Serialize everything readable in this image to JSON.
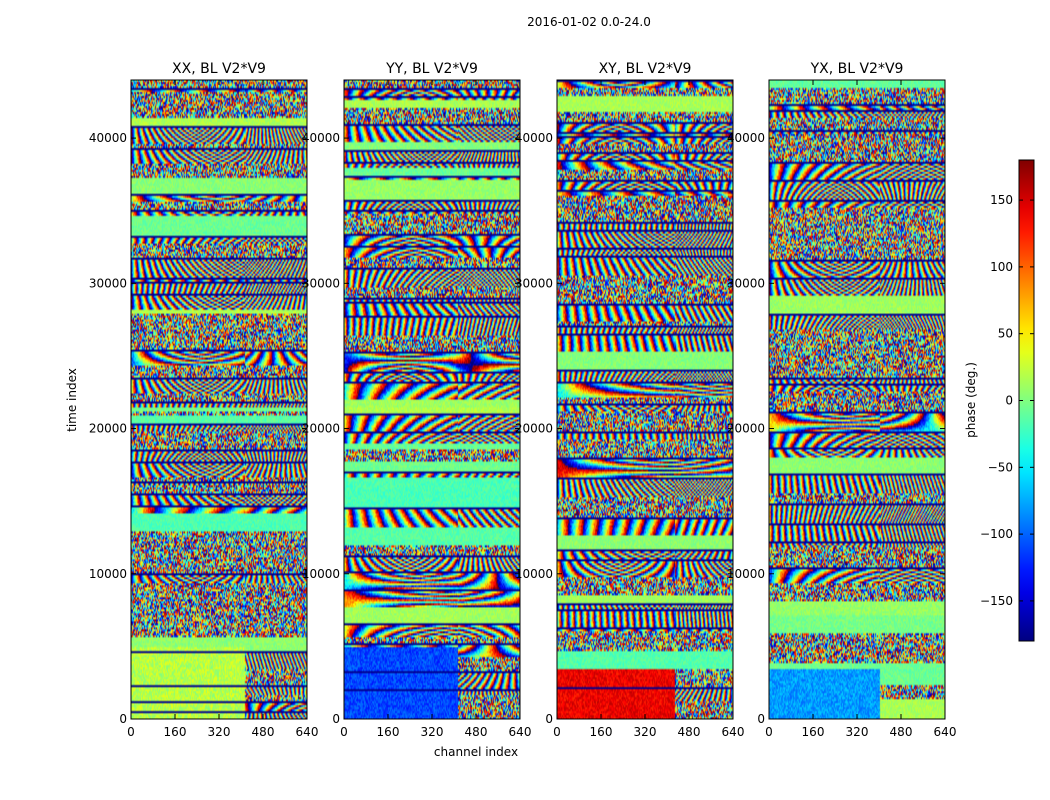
{
  "suptitle": "2016-01-02 0.0-24.0",
  "chart_data": {
    "type": "heatmap",
    "xlabel": "channel index",
    "ylabel": "time index",
    "xlim": [
      0,
      640
    ],
    "ylim": [
      0,
      44000
    ],
    "xticks": [
      "0",
      "160",
      "320",
      "480",
      "640"
    ],
    "yticks": [
      "0",
      "10000",
      "20000",
      "30000",
      "40000"
    ],
    "panels": [
      {
        "title": "XX, BL V2*V9",
        "seed": 11,
        "block_bias": [
          {
            "from": 0,
            "to": 5000,
            "value": 20
          }
        ]
      },
      {
        "title": "YY, BL V2*V9",
        "seed": 23,
        "block_bias": [
          {
            "from": 0,
            "to": 5000,
            "value": -110
          }
        ]
      },
      {
        "title": "XY, BL V2*V9",
        "seed": 37,
        "block_bias": [
          {
            "from": 0,
            "to": 3500,
            "value": 140
          }
        ]
      },
      {
        "title": "YX, BL V2*V9",
        "seed": 53,
        "block_bias": [
          {
            "from": 0,
            "to": 3500,
            "value": -80
          }
        ]
      }
    ],
    "colorbar": {
      "label": "phase (deg.)",
      "range": [
        -180,
        180
      ],
      "ticks": [
        "150",
        "100",
        "50",
        "0",
        "−50",
        "−100",
        "−150"
      ],
      "tick_values": [
        150,
        100,
        50,
        0,
        -50,
        -100,
        -150
      ],
      "colormap": "jet"
    }
  }
}
